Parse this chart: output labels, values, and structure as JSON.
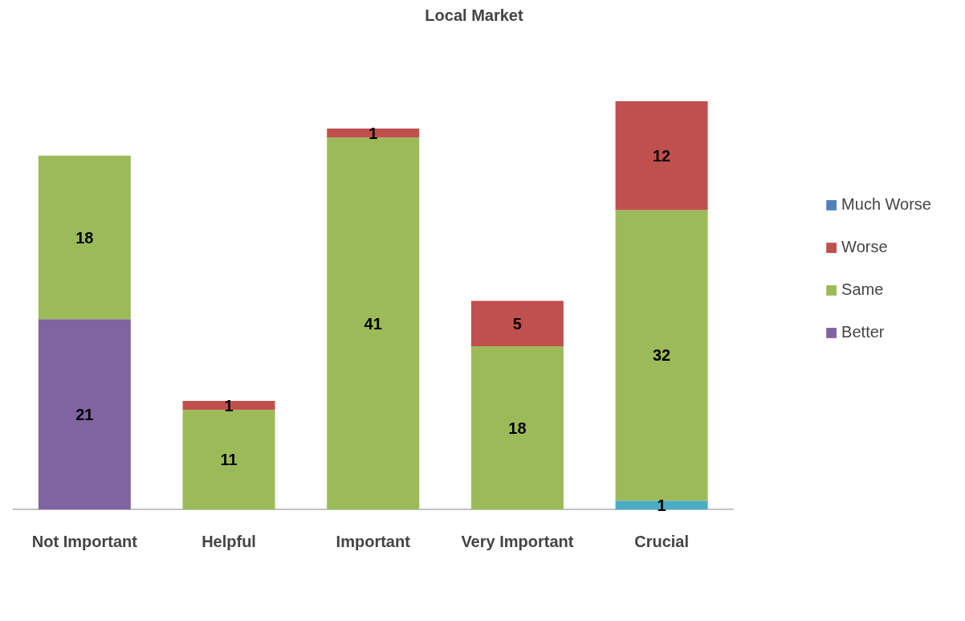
{
  "chart_data": {
    "type": "bar",
    "title": "Local Market",
    "stacked": true,
    "data_labels": true,
    "legend": "right",
    "grid": false,
    "categories": [
      "Not Important",
      "Helpful",
      "Important",
      "Very Important",
      "Crucial"
    ],
    "series": [
      {
        "color": "#4bacc6",
        "values": [
          null,
          null,
          null,
          null,
          1
        ]
      },
      {
        "name": "Better",
        "color": "#8064a2",
        "values": [
          21,
          null,
          null,
          null,
          null
        ]
      },
      {
        "name": "Same",
        "color": "#9bbb59",
        "values": [
          18,
          11,
          41,
          18,
          32
        ]
      },
      {
        "name": "Worse",
        "color": "#c0504d",
        "values": [
          null,
          1,
          1,
          5,
          12
        ]
      },
      {
        "name": "Much Worse",
        "color": "#4f81bd",
        "values": [
          null,
          null,
          null,
          null,
          null
        ]
      }
    ]
  }
}
